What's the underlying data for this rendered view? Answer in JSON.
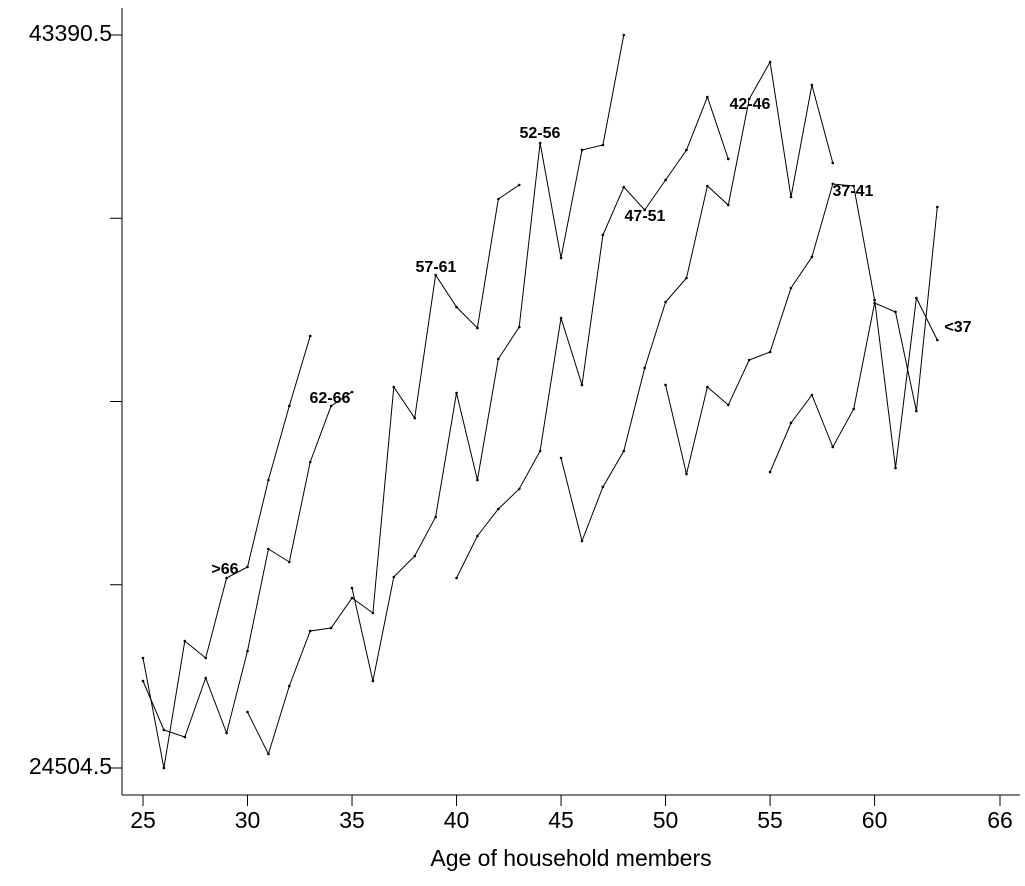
{
  "chart_data": {
    "type": "line",
    "xlabel": "Age of household members",
    "xlim": [
      25,
      66
    ],
    "xticks": [
      25,
      30,
      35,
      40,
      45,
      50,
      55,
      60,
      66
    ],
    "ylim": [
      24504.5,
      43390.5
    ],
    "yticks": [
      43390.5,
      24504.5
    ],
    "minor_yticks": [
      29226,
      33947.5,
      38669
    ],
    "color": "#000000",
    "series": [
      {
        "name": ">66",
        "x": [
          25,
          26,
          27,
          28,
          29,
          30,
          31,
          32,
          33
        ],
        "values": [
          27339,
          24505,
          27777,
          27339,
          29400,
          29684,
          31925,
          33832,
          35635
        ]
      },
      {
        "name": "62-66",
        "x": [
          25,
          26,
          27,
          28,
          29,
          30,
          31,
          32,
          33,
          34,
          35
        ],
        "values": [
          26746,
          25484,
          25303,
          26823,
          25406,
          27519,
          30147,
          29812,
          32389,
          33832,
          34192
        ]
      },
      {
        "name": "57-61",
        "x": [
          30,
          31,
          32,
          33,
          34,
          35,
          36,
          37,
          38,
          39,
          40,
          41,
          42,
          43
        ],
        "values": [
          25947,
          24865,
          26617,
          28034,
          28112,
          28885,
          28498,
          34321,
          33522,
          37207,
          36382,
          35841,
          39165,
          39526
        ]
      },
      {
        "name": "52-56",
        "x": [
          35,
          36,
          37,
          38,
          39,
          40,
          41,
          42,
          43,
          44,
          45,
          46,
          47,
          48
        ],
        "values": [
          29142,
          26746,
          29426,
          29967,
          30971,
          34166,
          31925,
          35043,
          35867,
          40608,
          37645,
          40428,
          40557,
          43390.5
        ]
      },
      {
        "name": "47-51",
        "x": [
          40,
          41,
          42,
          43,
          44,
          45,
          46,
          47,
          48,
          49,
          50,
          51,
          52,
          53
        ],
        "values": [
          29400,
          30482,
          31178,
          31693,
          32672,
          36099,
          34373,
          38238,
          39474,
          38882,
          39655,
          40428,
          41793,
          40196
        ]
      },
      {
        "name": "42-46",
        "x": [
          45,
          46,
          47,
          48,
          49,
          50,
          51,
          52,
          53,
          54,
          55,
          56,
          57,
          58
        ],
        "values": [
          32492,
          30353,
          31745,
          32672,
          34811,
          36511,
          37130,
          39500,
          39011,
          41742,
          42695,
          39217,
          42102,
          40093
        ]
      },
      {
        "name": "37-41",
        "x": [
          50,
          51,
          52,
          53,
          54,
          55,
          56,
          57,
          58,
          59,
          60,
          61,
          62,
          63
        ],
        "values": [
          34373,
          32080,
          34321,
          33858,
          35017,
          35223,
          36872,
          37671,
          39552,
          39500,
          36563,
          32234,
          36614,
          35532
        ]
      },
      {
        "name": "<37",
        "x": [
          55,
          56,
          57,
          58,
          59,
          60,
          61,
          62,
          63
        ],
        "values": [
          32131,
          33394,
          34115,
          32775,
          33754,
          36485,
          36254,
          33703,
          38959
        ]
      }
    ]
  }
}
